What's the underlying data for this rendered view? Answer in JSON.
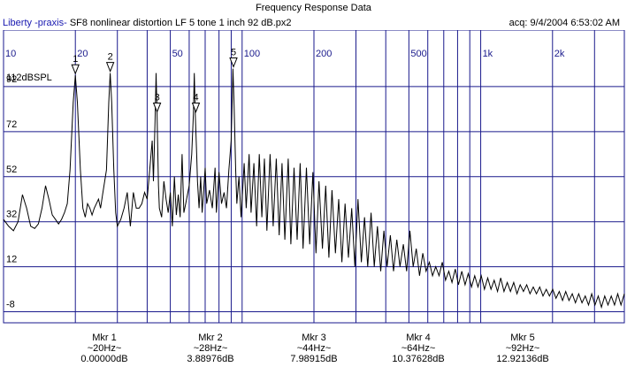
{
  "window": {
    "title": "Frequency Response Data"
  },
  "info": {
    "brand": "Liberty -praxis-",
    "file": "SF8 nonlinear distortion LF 5 tone 1 inch 92 dB.px2",
    "acq": "acq: 9/4/2004 6:53:02 AM"
  },
  "chart_data": {
    "type": "line",
    "title": "Frequency Response Data",
    "xlabel": "",
    "ylabel": "",
    "x_scale": "log",
    "xlim": [
      10,
      4000
    ],
    "ylim": [
      -18,
      112
    ],
    "unit_label": "112dBSPL",
    "x_tick_labels": [
      {
        "f": 10,
        "label": "10"
      },
      {
        "f": 20,
        "label": "20"
      },
      {
        "f": 50,
        "label": "50"
      },
      {
        "f": 100,
        "label": "100"
      },
      {
        "f": 200,
        "label": "200"
      },
      {
        "f": 500,
        "label": "500"
      },
      {
        "f": 1000,
        "label": "1k"
      },
      {
        "f": 2000,
        "label": "2k"
      }
    ],
    "y_tick_labels": [
      92,
      72,
      52,
      32,
      12,
      -8
    ],
    "grid": true,
    "series": [
      {
        "points": [
          [
            10,
            33
          ],
          [
            10.5,
            30
          ],
          [
            11,
            28
          ],
          [
            11.5,
            32
          ],
          [
            12,
            44
          ],
          [
            12.5,
            38
          ],
          [
            13,
            30
          ],
          [
            13.5,
            29
          ],
          [
            14,
            31
          ],
          [
            14.5,
            38
          ],
          [
            15,
            48
          ],
          [
            15.5,
            42
          ],
          [
            16,
            35
          ],
          [
            16.5,
            33
          ],
          [
            17,
            31
          ],
          [
            17.5,
            33
          ],
          [
            18,
            36
          ],
          [
            18.5,
            40
          ],
          [
            19,
            55
          ],
          [
            19.6,
            85
          ],
          [
            20,
            97
          ],
          [
            20.4,
            85
          ],
          [
            21,
            55
          ],
          [
            21.5,
            38
          ],
          [
            22,
            34
          ],
          [
            22.5,
            40
          ],
          [
            23,
            38
          ],
          [
            23.5,
            35
          ],
          [
            24,
            38
          ],
          [
            24.5,
            40
          ],
          [
            25,
            42
          ],
          [
            25.5,
            38
          ],
          [
            26,
            44
          ],
          [
            27,
            55
          ],
          [
            27.6,
            85
          ],
          [
            28,
            98
          ],
          [
            28.4,
            85
          ],
          [
            29,
            55
          ],
          [
            29.5,
            36
          ],
          [
            30,
            30
          ],
          [
            31,
            33
          ],
          [
            32,
            38
          ],
          [
            33,
            45
          ],
          [
            34,
            30
          ],
          [
            35,
            45
          ],
          [
            36,
            38
          ],
          [
            37,
            38
          ],
          [
            38,
            40
          ],
          [
            39,
            45
          ],
          [
            40,
            42
          ],
          [
            41,
            55
          ],
          [
            42,
            68
          ],
          [
            42.5,
            50
          ],
          [
            43.2,
            78
          ],
          [
            43.6,
            98
          ],
          [
            44,
            80
          ],
          [
            44.6,
            48
          ],
          [
            45,
            38
          ],
          [
            46,
            34
          ],
          [
            47,
            50
          ],
          [
            48,
            42
          ],
          [
            49,
            36
          ],
          [
            50,
            45
          ],
          [
            51,
            30
          ],
          [
            52,
            52
          ],
          [
            53,
            35
          ],
          [
            54,
            44
          ],
          [
            55,
            34
          ],
          [
            56,
            62
          ],
          [
            57,
            36
          ],
          [
            58,
            40
          ],
          [
            60,
            48
          ],
          [
            61.5,
            62
          ],
          [
            62.5,
            80
          ],
          [
            63,
            98
          ],
          [
            63.6,
            80
          ],
          [
            64.5,
            62
          ],
          [
            65,
            50
          ],
          [
            66,
            38
          ],
          [
            67,
            52
          ],
          [
            68,
            36
          ],
          [
            70,
            56
          ],
          [
            71,
            40
          ],
          [
            73,
            46
          ],
          [
            75,
            38
          ],
          [
            77,
            56
          ],
          [
            78,
            36
          ],
          [
            80,
            54
          ],
          [
            82,
            40
          ],
          [
            84,
            45
          ],
          [
            86,
            38
          ],
          [
            88,
            55
          ],
          [
            90,
            68
          ],
          [
            91.5,
            100
          ],
          [
            92.5,
            84
          ],
          [
            94,
            55
          ],
          [
            95,
            40
          ],
          [
            97,
            52
          ],
          [
            99,
            34
          ],
          [
            102,
            58
          ],
          [
            104,
            38
          ],
          [
            107,
            62
          ],
          [
            109,
            36
          ],
          [
            112,
            58
          ],
          [
            115,
            30
          ],
          [
            118,
            62
          ],
          [
            121,
            34
          ],
          [
            124,
            60
          ],
          [
            127,
            28
          ],
          [
            131,
            62
          ],
          [
            135,
            30
          ],
          [
            139,
            60
          ],
          [
            143,
            26
          ],
          [
            147,
            58
          ],
          [
            151,
            24
          ],
          [
            156,
            60
          ],
          [
            160,
            22
          ],
          [
            165,
            56
          ],
          [
            170,
            24
          ],
          [
            175,
            58
          ],
          [
            180,
            20
          ],
          [
            186,
            56
          ],
          [
            192,
            22
          ],
          [
            198,
            54
          ],
          [
            204,
            18
          ],
          [
            210,
            50
          ],
          [
            217,
            20
          ],
          [
            224,
            48
          ],
          [
            231,
            16
          ],
          [
            238,
            46
          ],
          [
            246,
            18
          ],
          [
            254,
            42
          ],
          [
            262,
            14
          ],
          [
            270,
            40
          ],
          [
            279,
            16
          ],
          [
            288,
            38
          ],
          [
            297,
            12
          ],
          [
            306,
            42
          ],
          [
            316,
            14
          ],
          [
            326,
            34
          ],
          [
            336,
            12
          ],
          [
            347,
            36
          ],
          [
            358,
            12
          ],
          [
            369,
            30
          ],
          [
            381,
            10
          ],
          [
            393,
            28
          ],
          [
            405,
            12
          ],
          [
            418,
            26
          ],
          [
            431,
            10
          ],
          [
            445,
            24
          ],
          [
            459,
            12
          ],
          [
            474,
            22
          ],
          [
            489,
            10
          ],
          [
            505,
            28
          ],
          [
            521,
            12
          ],
          [
            537,
            20
          ],
          [
            554,
            8
          ],
          [
            572,
            18
          ],
          [
            590,
            10
          ],
          [
            609,
            14
          ],
          [
            628,
            8
          ],
          [
            648,
            12
          ],
          [
            669,
            8
          ],
          [
            690,
            14
          ],
          [
            712,
            6
          ],
          [
            735,
            10
          ],
          [
            758,
            5
          ],
          [
            782,
            11
          ],
          [
            807,
            4
          ],
          [
            833,
            10
          ],
          [
            860,
            4
          ],
          [
            887,
            9
          ],
          [
            915,
            3
          ],
          [
            944,
            8
          ],
          [
            974,
            3
          ],
          [
            1005,
            8
          ],
          [
            1037,
            2
          ],
          [
            1070,
            7
          ],
          [
            1104,
            2
          ],
          [
            1139,
            6
          ],
          [
            1176,
            1
          ],
          [
            1213,
            7
          ],
          [
            1252,
            1
          ],
          [
            1292,
            5
          ],
          [
            1333,
            1
          ],
          [
            1375,
            5
          ],
          [
            1419,
            0
          ],
          [
            1464,
            4
          ],
          [
            1511,
            1
          ],
          [
            1559,
            4
          ],
          [
            1609,
            0
          ],
          [
            1660,
            3
          ],
          [
            1713,
            0
          ],
          [
            1768,
            3
          ],
          [
            1824,
            -1
          ],
          [
            1882,
            2
          ],
          [
            1942,
            -1
          ],
          [
            2004,
            2
          ],
          [
            2068,
            -2
          ],
          [
            2134,
            1
          ],
          [
            2202,
            -3
          ],
          [
            2272,
            1
          ],
          [
            2344,
            -3
          ],
          [
            2419,
            0
          ],
          [
            2496,
            -4
          ],
          [
            2576,
            0
          ],
          [
            2658,
            -4
          ],
          [
            2742,
            -1
          ],
          [
            2830,
            -5
          ],
          [
            2920,
            0
          ],
          [
            3013,
            -5
          ],
          [
            3109,
            -1
          ],
          [
            3208,
            -6
          ],
          [
            3310,
            -1
          ],
          [
            3416,
            -5
          ],
          [
            3524,
            -1
          ],
          [
            3637,
            -5
          ],
          [
            3753,
            0
          ],
          [
            3872,
            -5
          ],
          [
            4000,
            0
          ]
        ]
      }
    ],
    "markers": [
      {
        "num": "1",
        "freq": 20
      },
      {
        "num": "2",
        "freq": 28
      },
      {
        "num": "3",
        "freq": 44
      },
      {
        "num": "4",
        "freq": 64
      },
      {
        "num": "5",
        "freq": 92
      }
    ]
  },
  "marker_readout": [
    {
      "name": "Mkr 1",
      "freq": "~20Hz~",
      "value": "0.00000dB"
    },
    {
      "name": "Mkr 2",
      "freq": "~28Hz~",
      "value": "3.88976dB"
    },
    {
      "name": "Mkr 3",
      "freq": "~44Hz~",
      "value": "7.98915dB"
    },
    {
      "name": "Mkr 4",
      "freq": "~64Hz~",
      "value": "10.37628dB"
    },
    {
      "name": "Mkr 5",
      "freq": "~92Hz~",
      "value": "12.92136dB"
    }
  ]
}
